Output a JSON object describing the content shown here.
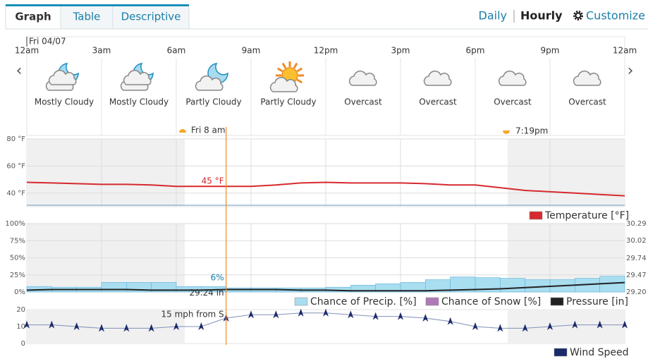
{
  "tabs": [
    "Graph",
    "Table",
    "Descriptive"
  ],
  "views": [
    "Daily",
    "Hourly"
  ],
  "customize": "Customize",
  "date": "Fri 04/07",
  "time_labels": [
    "12am",
    "3am",
    "6am",
    "9am",
    "12pm",
    "3pm",
    "6pm",
    "9pm",
    "12am"
  ],
  "conditions": [
    "Mostly Cloudy",
    "Mostly Cloudy",
    "Partly Cloudy",
    "Partly Cloudy",
    "Overcast",
    "Overcast",
    "Overcast",
    "Overcast"
  ],
  "now_label": "Fri 8 am",
  "sunset_label": "7:19pm",
  "temperature": {
    "legend": "Temperature [°F]",
    "color": "#d62a2f",
    "ylim": [
      30,
      80
    ],
    "yticks": [
      {
        "value": 40,
        "label": "40 °F"
      },
      {
        "value": 60,
        "label": "60 °F"
      },
      {
        "value": 80,
        "label": "80 °F"
      }
    ],
    "values": [
      48,
      47.5,
      47,
      46.5,
      46.5,
      46,
      45,
      45,
      45,
      45,
      46,
      47.5,
      48,
      47.5,
      47.5,
      47.5,
      47,
      46,
      46,
      44,
      42,
      41,
      40,
      39,
      38
    ],
    "value_labels": [
      null,
      null,
      null,
      null,
      null,
      null,
      null,
      null,
      "45 °F",
      null,
      null,
      null,
      null,
      null,
      null,
      null,
      null,
      null,
      null,
      null,
      null,
      null,
      null,
      null,
      null
    ]
  },
  "precip": {
    "legend": "Chance of Precip. [%]",
    "color": "#a9ddf0",
    "ylim": [
      0,
      100
    ],
    "yticks": [
      {
        "value": 0,
        "label": "0%"
      },
      {
        "value": 25,
        "label": "25%"
      },
      {
        "value": 50,
        "label": "50%"
      },
      {
        "value": 75,
        "label": "75%"
      },
      {
        "value": 100,
        "label": "100%"
      }
    ],
    "values": [
      8,
      7,
      7,
      14,
      14,
      14,
      8,
      8,
      6,
      6,
      6,
      6,
      7,
      10,
      12,
      14,
      18,
      22,
      21,
      20,
      18,
      18,
      20,
      23
    ],
    "value_labels": [
      null,
      null,
      null,
      null,
      null,
      null,
      null,
      null,
      "6%",
      null,
      null,
      null,
      null,
      null,
      null,
      null,
      null,
      null,
      null,
      null,
      null,
      null,
      null,
      null
    ]
  },
  "snow": {
    "legend": "Chance of Snow [%]",
    "color": "#b07ab8"
  },
  "pressure": {
    "legend": "Pressure [in]",
    "color": "#222222",
    "ylim": [
      29.2,
      30.29
    ],
    "yticks": [
      {
        "value": 29.2,
        "label": "29.20"
      },
      29.47,
      29.74,
      30.02,
      30.29
    ],
    "values": [
      29.23,
      29.24,
      29.24,
      29.24,
      29.24,
      29.23,
      29.23,
      29.23,
      29.24,
      29.24,
      29.24,
      29.23,
      29.23,
      29.22,
      29.22,
      29.22,
      29.22,
      29.23,
      29.24,
      29.25,
      29.27,
      29.29,
      29.31,
      29.33,
      29.35
    ],
    "value_labels": [
      null,
      null,
      null,
      null,
      null,
      null,
      null,
      null,
      "29.24 in",
      null,
      null,
      null,
      null,
      null,
      null,
      null,
      null,
      null,
      null,
      null,
      null,
      null,
      null,
      null,
      null
    ]
  },
  "wind": {
    "legend": "Wind Speed",
    "color": "#1b2a6b",
    "ylim": [
      0,
      20
    ],
    "yticks": [
      0,
      10,
      20
    ],
    "values": [
      11,
      11,
      10,
      9,
      9,
      9,
      10,
      10,
      15,
      17,
      17,
      18,
      18,
      17,
      16,
      16,
      15,
      13,
      10,
      9,
      9,
      10,
      11,
      11,
      11
    ],
    "value_labels": [
      null,
      null,
      null,
      null,
      null,
      null,
      null,
      null,
      "15 mph from S",
      null,
      null,
      null,
      null,
      null,
      null,
      null,
      null,
      null,
      null,
      null,
      null,
      null,
      null,
      null,
      null
    ]
  }
}
